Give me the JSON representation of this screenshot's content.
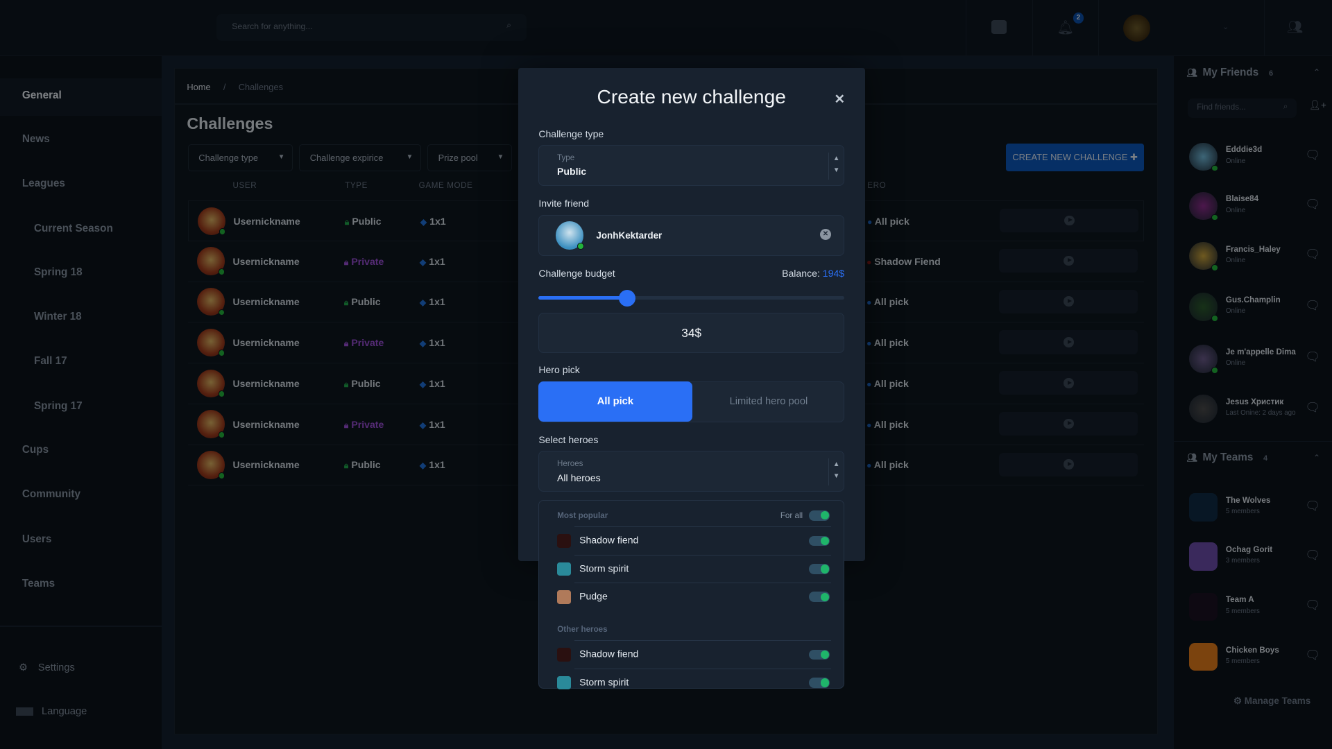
{
  "topbar": {
    "search_placeholder": "Search for anything...",
    "notification_count": "2"
  },
  "sidebar": {
    "items": [
      {
        "label": "General",
        "active": true
      },
      {
        "label": "News"
      },
      {
        "label": "Leagues"
      },
      {
        "label": "Current Season",
        "sub": true
      },
      {
        "label": "Spring 18",
        "sub": true
      },
      {
        "label": "Winter 18",
        "sub": true
      },
      {
        "label": "Fall 17",
        "sub": true
      },
      {
        "label": "Spring 17",
        "sub": true
      },
      {
        "label": "Cups"
      },
      {
        "label": "Community"
      },
      {
        "label": "Users"
      },
      {
        "label": "Teams"
      }
    ],
    "settings": "Settings",
    "language": "Language"
  },
  "main": {
    "breadcrumb": [
      "Home",
      "/",
      "Challenges"
    ],
    "title": "Challenges",
    "filters": [
      "Challenge type",
      "Challenge expirice",
      "Prize pool"
    ],
    "create_button": "CREATE NEW CHALLENGE",
    "columns": [
      "USER",
      "TYPE",
      "GAME MODE",
      "ERO"
    ],
    "rows": [
      {
        "user": "Usernickname",
        "type": "Public",
        "mode": "1x1",
        "hero": "All pick"
      },
      {
        "user": "Usernickname",
        "type": "Private",
        "mode": "1x1",
        "hero": "Shadow Fiend"
      },
      {
        "user": "Usernickname",
        "type": "Public",
        "mode": "1x1",
        "hero": "All pick"
      },
      {
        "user": "Usernickname",
        "type": "Private",
        "mode": "1x1",
        "hero": "All pick"
      },
      {
        "user": "Usernickname",
        "type": "Public",
        "mode": "1x1",
        "hero": "All pick"
      },
      {
        "user": "Usernickname",
        "type": "Private",
        "mode": "1x1",
        "hero": "All pick"
      },
      {
        "user": "Usernickname",
        "type": "Public",
        "mode": "1x1",
        "hero": "All pick"
      }
    ]
  },
  "colors": {
    "public": "#1fa84a",
    "private": "#9b4fd6",
    "accent": "#2a6ff5",
    "online": "#23b33a"
  },
  "friends": {
    "title": "My Friends",
    "count": "6",
    "search_placeholder": "Find friends...",
    "items": [
      {
        "name": "Edddie3d",
        "status": "Online"
      },
      {
        "name": "Blaise84",
        "status": "Online"
      },
      {
        "name": "Francis_Haley",
        "status": "Online"
      },
      {
        "name": "Gus.Champlin",
        "status": "Online"
      },
      {
        "name": "Je m'appelle Dima",
        "status": "Online"
      },
      {
        "name": "Jesus Христик",
        "status": "Last Onine: 2 days ago"
      }
    ]
  },
  "teams": {
    "title": "My Teams",
    "count": "4",
    "items": [
      {
        "name": "The Wolves",
        "members": "5 members"
      },
      {
        "name": "Ochag Gorit",
        "members": "3 members"
      },
      {
        "name": "Team A",
        "members": "5 members"
      },
      {
        "name": "Chicken Boys",
        "members": "5 members"
      }
    ],
    "manage": "Manage Teams"
  },
  "modal": {
    "title": "Create new challenge",
    "challenge_type_label": "Challenge type",
    "type_small": "Type",
    "type_value": "Public",
    "invite_label": "Invite friend",
    "invite_name": "JonhKektarder",
    "budget_label": "Challenge budget",
    "balance_label": "Balance:",
    "balance_value": "194$",
    "budget_fraction": 0.29,
    "budget_value": "34$",
    "hero_pick_label": "Hero pick",
    "hero_pick_options": [
      "All pick",
      "Limited hero pool"
    ],
    "hero_pick_selected": "All pick",
    "select_heroes_label": "Select heroes",
    "heroes_small": "Heroes",
    "heroes_value": "All heroes",
    "most_popular": "Most popular",
    "for_all": "For all",
    "popular": [
      "Shadow fiend",
      "Storm spirit",
      "Pudge"
    ],
    "other_heroes": "Other heroes",
    "others": [
      "Shadow fiend",
      "Storm spirit"
    ]
  }
}
